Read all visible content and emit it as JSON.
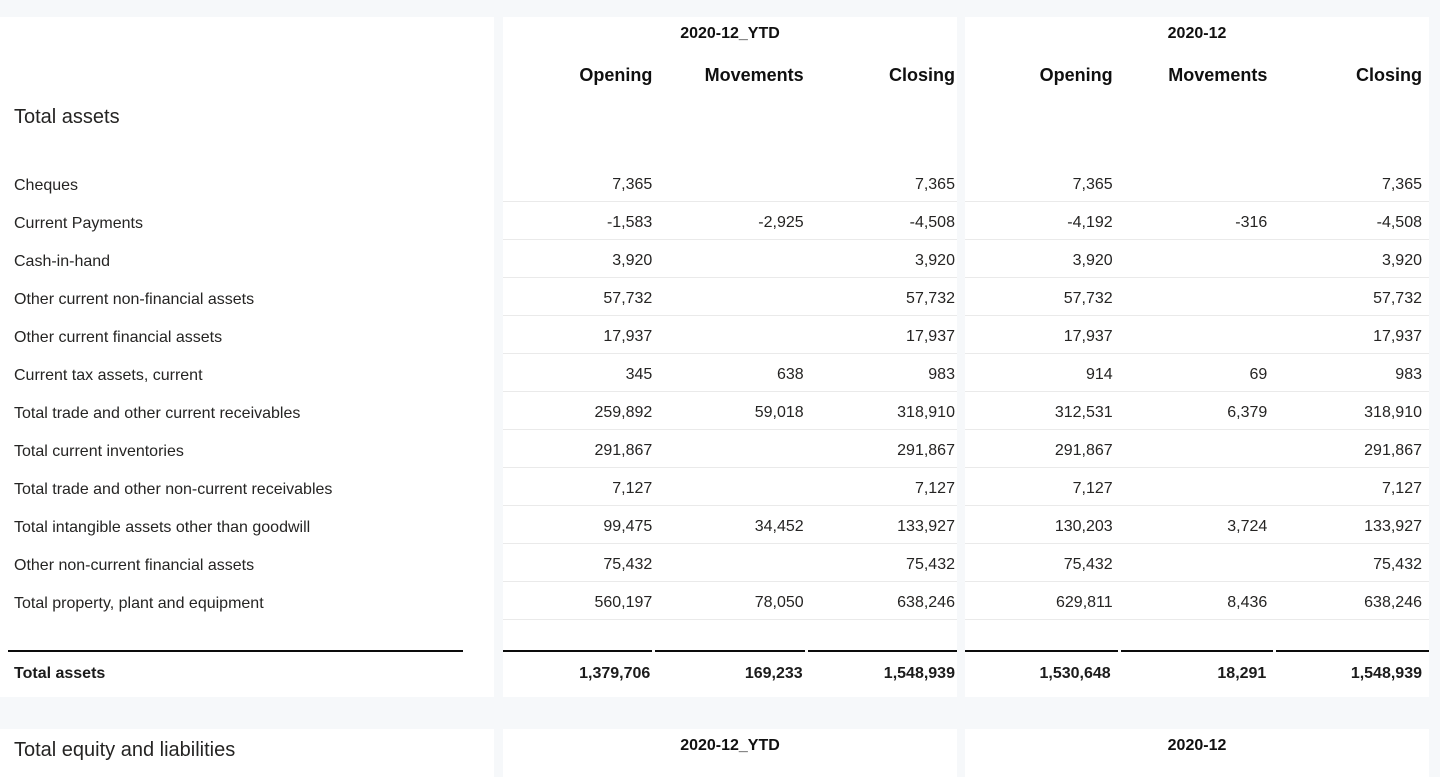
{
  "theme": {
    "page_background": "#f6f8fa",
    "panel_background": "#ffffff",
    "row_divider": "#eaeaea",
    "total_rule": "#0c0c0c",
    "text": "#252423"
  },
  "report": {
    "section_assets": {
      "title": "Total assets",
      "groups": [
        {
          "label": "2020-12_YTD",
          "columns": [
            "Opening",
            "Movements",
            "Closing"
          ]
        },
        {
          "label": "2020-12",
          "columns": [
            "Opening",
            "Movements",
            "Closing"
          ]
        }
      ],
      "rows": [
        {
          "label": "Cheques",
          "ytd": [
            "7,365",
            "",
            "7,365"
          ],
          "mtd": [
            "7,365",
            "",
            "7,365"
          ]
        },
        {
          "label": "Current Payments",
          "ytd": [
            "-1,583",
            "-2,925",
            "-4,508"
          ],
          "mtd": [
            "-4,192",
            "-316",
            "-4,508"
          ]
        },
        {
          "label": "Cash-in-hand",
          "ytd": [
            "3,920",
            "",
            "3,920"
          ],
          "mtd": [
            "3,920",
            "",
            "3,920"
          ]
        },
        {
          "label": "Other current non-financial assets",
          "ytd": [
            "57,732",
            "",
            "57,732"
          ],
          "mtd": [
            "57,732",
            "",
            "57,732"
          ]
        },
        {
          "label": "Other current financial assets",
          "ytd": [
            "17,937",
            "",
            "17,937"
          ],
          "mtd": [
            "17,937",
            "",
            "17,937"
          ]
        },
        {
          "label": "Current tax assets, current",
          "ytd": [
            "345",
            "638",
            "983"
          ],
          "mtd": [
            "914",
            "69",
            "983"
          ]
        },
        {
          "label": "Total trade and other current receivables",
          "ytd": [
            "259,892",
            "59,018",
            "318,910"
          ],
          "mtd": [
            "312,531",
            "6,379",
            "318,910"
          ]
        },
        {
          "label": "Total current inventories",
          "ytd": [
            "291,867",
            "",
            "291,867"
          ],
          "mtd": [
            "291,867",
            "",
            "291,867"
          ]
        },
        {
          "label": "Total trade and other non-current receivables",
          "ytd": [
            "7,127",
            "",
            "7,127"
          ],
          "mtd": [
            "7,127",
            "",
            "7,127"
          ]
        },
        {
          "label": "Total intangible assets other than goodwill",
          "ytd": [
            "99,475",
            "34,452",
            "133,927"
          ],
          "mtd": [
            "130,203",
            "3,724",
            "133,927"
          ]
        },
        {
          "label": "Other non-current financial assets",
          "ytd": [
            "75,432",
            "",
            "75,432"
          ],
          "mtd": [
            "75,432",
            "",
            "75,432"
          ]
        },
        {
          "label": "Total property, plant and equipment",
          "ytd": [
            "560,197",
            "78,050",
            "638,246"
          ],
          "mtd": [
            "629,811",
            "8,436",
            "638,246"
          ]
        }
      ],
      "total": {
        "label": "Total assets",
        "ytd": [
          "1,379,706",
          "169,233",
          "1,548,939"
        ],
        "mtd": [
          "1,530,648",
          "18,291",
          "1,548,939"
        ]
      }
    },
    "section_equity": {
      "title": "Total equity and liabilities",
      "groups": [
        {
          "label": "2020-12_YTD"
        },
        {
          "label": "2020-12"
        }
      ]
    }
  }
}
